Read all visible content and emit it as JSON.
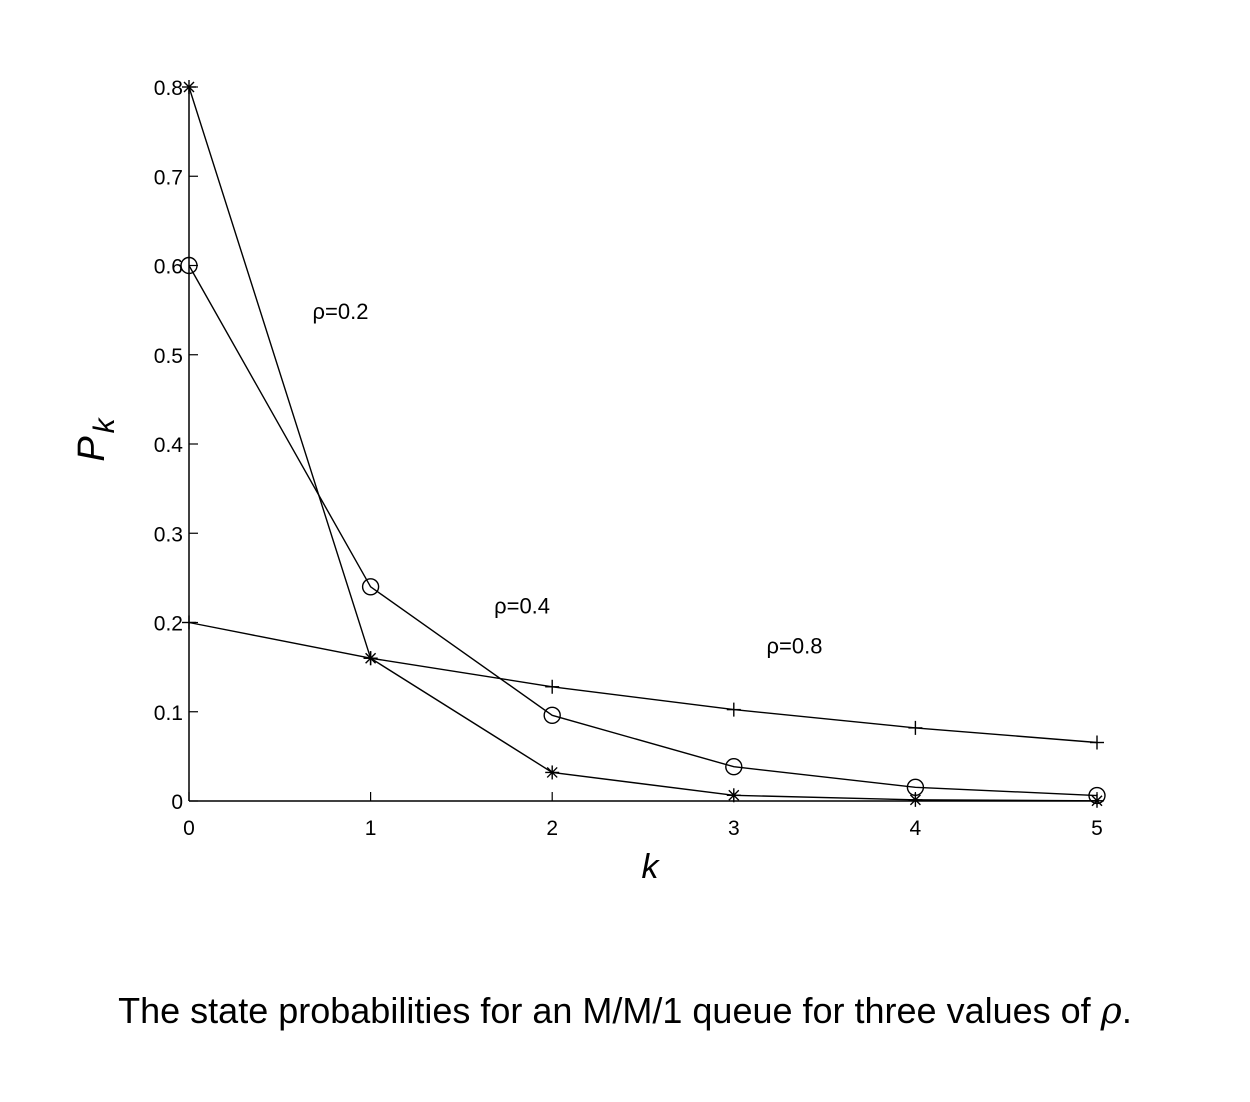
{
  "chart_data": {
    "type": "line",
    "x": [
      0,
      1,
      2,
      3,
      4,
      5
    ],
    "xlabel": "k",
    "ylabel": "P",
    "ylabel_subscript": "k",
    "xlim": [
      0,
      5
    ],
    "ylim": [
      0,
      0.8
    ],
    "xticks": [
      "0",
      "1",
      "2",
      "3",
      "4",
      "5"
    ],
    "yticks": [
      "0",
      "0.1",
      "0.2",
      "0.3",
      "0.4",
      "0.5",
      "0.6",
      "0.7",
      "0.8"
    ],
    "grid": false,
    "series": [
      {
        "name": "ρ=0.2",
        "marker": "asterisk",
        "values": [
          0.8,
          0.16,
          0.032,
          0.0064,
          0.00128,
          0.000256
        ]
      },
      {
        "name": "ρ=0.4",
        "marker": "circle",
        "values": [
          0.6,
          0.24,
          0.096,
          0.0384,
          0.01536,
          0.006144
        ]
      },
      {
        "name": "ρ=0.8",
        "marker": "plus",
        "values": [
          0.2,
          0.16,
          0.128,
          0.1024,
          0.08192,
          0.065536
        ]
      }
    ],
    "annotations": [
      {
        "text": "ρ=0.2",
        "x": 0.68,
        "y": 0.54
      },
      {
        "text": "ρ=0.4",
        "x": 1.68,
        "y": 0.21
      },
      {
        "text": "ρ=0.8",
        "x": 3.18,
        "y": 0.165
      }
    ]
  },
  "caption": {
    "text": "The state probabilities for an M/M/1 queue for three values of ",
    "symbol": "ρ",
    "end": "."
  }
}
